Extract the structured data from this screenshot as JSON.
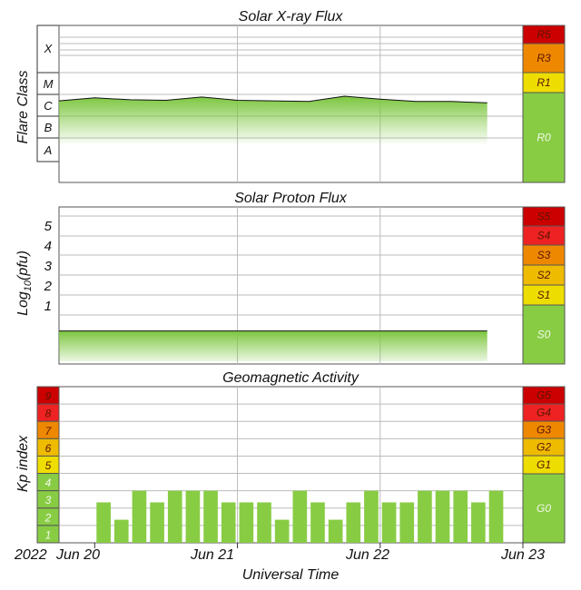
{
  "footer": {
    "year": "2022",
    "date_labels": [
      "Jun 20",
      "Jun 21",
      "Jun 22",
      "Jun 23"
    ],
    "xlabel": "Universal Time"
  },
  "chart_data": [
    {
      "type": "area",
      "title": "Solar X-ray Flux",
      "ylabel": "Flare Class",
      "y_scale": "log",
      "class_labels": [
        "X",
        "M",
        "C",
        "B",
        "A"
      ],
      "x": [
        "2022-06-19T18:00",
        "2022-06-20T00:00",
        "2022-06-20T06:00",
        "2022-06-20T12:00",
        "2022-06-20T18:00",
        "2022-06-21T00:00",
        "2022-06-21T06:00",
        "2022-06-21T12:00",
        "2022-06-21T18:00",
        "2022-06-22T00:00",
        "2022-06-22T06:00",
        "2022-06-22T12:00",
        "2022-06-22T18:00"
      ],
      "series": [
        {
          "values": [
            "1.6e-6",
            "2.2e-6",
            "1.8e-6",
            "1.7e-6",
            "2.4e-6",
            "1.7e-6",
            "1.6e-6",
            "1.5e-6",
            "2.6e-6",
            "1.9e-6",
            "1.5e-6",
            "1.5e-6",
            "1.3e-6"
          ]
        }
      ],
      "scale": {
        "labels": [
          "R5",
          "R3",
          "R1",
          "R0"
        ],
        "colors": [
          "#cc0000",
          "#ee8800",
          "#eedd00",
          "#88cc44"
        ]
      }
    },
    {
      "type": "area",
      "title": "Solar Proton Flux",
      "ylabel": "Log10(pfu)",
      "yticks": [
        "5",
        "4",
        "3",
        "2",
        "1"
      ],
      "x": [
        "2022-06-19T18:00",
        "2022-06-20T12:00",
        "2022-06-21T06:00",
        "2022-06-22T00:00",
        "2022-06-22T18:00"
      ],
      "series": [
        {
          "values": [
            -0.3,
            -0.3,
            -0.3,
            -0.3,
            -0.3
          ]
        }
      ],
      "scale": {
        "labels": [
          "S5",
          "S4",
          "S3",
          "S2",
          "S1",
          "S0"
        ],
        "colors": [
          "#cc0000",
          "#ee2222",
          "#ee8800",
          "#eebb00",
          "#eedd00",
          "#88cc44"
        ]
      }
    },
    {
      "type": "bar",
      "title": "Geomagnetic Activity",
      "ylabel": "Kp index",
      "ylim": [
        0,
        9
      ],
      "kp_labels": [
        "9",
        "8",
        "7",
        "6",
        "5",
        "4",
        "3",
        "2",
        "1"
      ],
      "x": [
        "2022-06-20T00:00",
        "2022-06-20T03:00",
        "2022-06-20T06:00",
        "2022-06-20T09:00",
        "2022-06-20T12:00",
        "2022-06-20T15:00",
        "2022-06-20T18:00",
        "2022-06-20T21:00",
        "2022-06-21T00:00",
        "2022-06-21T03:00",
        "2022-06-21T06:00",
        "2022-06-21T09:00",
        "2022-06-21T12:00",
        "2022-06-21T15:00",
        "2022-06-21T18:00",
        "2022-06-21T21:00",
        "2022-06-22T00:00",
        "2022-06-22T03:00",
        "2022-06-22T06:00",
        "2022-06-22T09:00",
        "2022-06-22T12:00",
        "2022-06-22T15:00",
        "2022-06-22T18:00",
        "2022-06-22T21:00"
      ],
      "values": [
        2.33,
        1.33,
        3,
        2.33,
        3,
        3,
        3,
        2.33,
        2.33,
        2.33,
        1.33,
        3,
        2.33,
        1.33,
        2.33,
        3,
        2.33,
        2.33,
        3,
        3,
        3,
        2.33,
        3,
        0
      ],
      "scale": {
        "labels": [
          "G5",
          "G4",
          "G3",
          "G2",
          "G1",
          "G0"
        ],
        "colors": [
          "#cc0000",
          "#ee2222",
          "#ee8800",
          "#eebb00",
          "#eedd00",
          "#88cc44"
        ]
      }
    }
  ]
}
